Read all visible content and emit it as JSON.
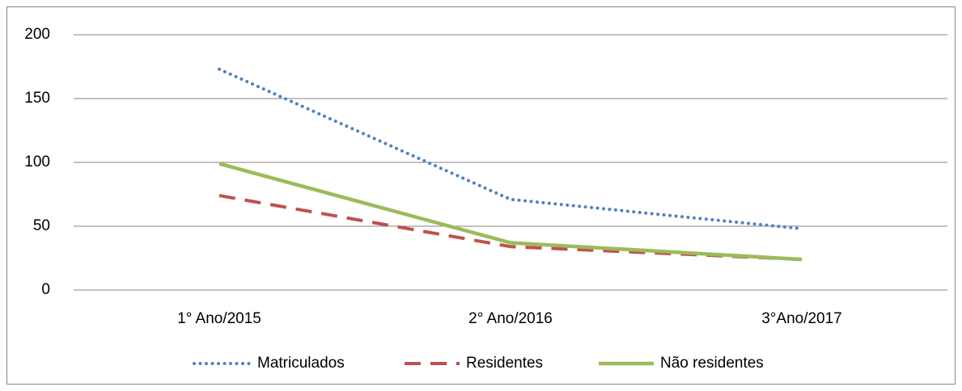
{
  "chart_data": {
    "type": "line",
    "categories": [
      "1° Ano/2015",
      "2° Ano/2016",
      "3°Ano/2017"
    ],
    "series": [
      {
        "name": "Matriculados",
        "color": "#4f81bd",
        "style": "dotted",
        "values": [
          173,
          71,
          48
        ]
      },
      {
        "name": "Residentes",
        "color": "#c0504d",
        "style": "dashed",
        "values": [
          74,
          34,
          24
        ]
      },
      {
        "name": "Não residentes",
        "color": "#9bbb59",
        "style": "solid",
        "values": [
          99,
          37,
          24
        ]
      }
    ],
    "ylim": [
      0,
      200
    ],
    "yticks": [
      0,
      50,
      100,
      150,
      200
    ],
    "grid": true,
    "legend": "bottom"
  }
}
